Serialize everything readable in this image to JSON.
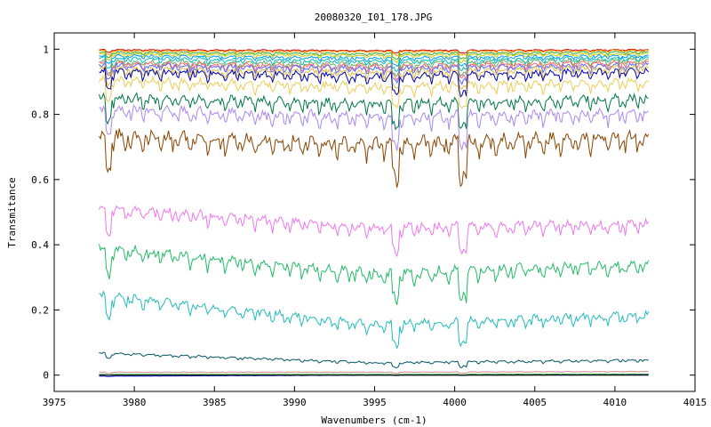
{
  "chart_data": {
    "type": "line",
    "title": "20080320_I01_178.JPG",
    "xlabel": "Wavenumbers (cm-1)",
    "ylabel": "Transmitance",
    "xlim": [
      3975,
      4015
    ],
    "ylim": [
      -0.05,
      1.05
    ],
    "x_ticks": [
      3975,
      3980,
      3985,
      3990,
      3995,
      4000,
      4005,
      4010,
      4015
    ],
    "y_ticks": [
      0,
      0.2,
      0.4,
      0.6,
      0.8,
      1
    ],
    "x_range": [
      3977.8,
      4012.1
    ],
    "grid": false,
    "legend": "none",
    "series": [
      {
        "color": "#cc0000",
        "levels": [
          1.0,
          0.998,
          1.0
        ],
        "depth": 0.004
      },
      {
        "color": "#ff9900",
        "levels": [
          0.998,
          0.996,
          0.999
        ],
        "depth": 0.006
      },
      {
        "color": "#33aa33",
        "levels": [
          0.994,
          0.99,
          0.995
        ],
        "depth": 0.008
      },
      {
        "color": "#cccc00",
        "levels": [
          0.99,
          0.985,
          0.99
        ],
        "depth": 0.01
      },
      {
        "color": "#0099ff",
        "levels": [
          0.985,
          0.978,
          0.985
        ],
        "depth": 0.012
      },
      {
        "color": "#00bbbb",
        "levels": [
          0.978,
          0.97,
          0.98
        ],
        "depth": 0.015
      },
      {
        "color": "#66aa66",
        "levels": [
          0.97,
          0.962,
          0.975
        ],
        "depth": 0.018
      },
      {
        "color": "#ff6666",
        "levels": [
          0.965,
          0.955,
          0.968
        ],
        "depth": 0.02
      },
      {
        "color": "#5566ff",
        "levels": [
          0.96,
          0.95,
          0.96
        ],
        "depth": 0.022
      },
      {
        "color": "#ddbb44",
        "levels": [
          0.95,
          0.94,
          0.955
        ],
        "depth": 0.025
      },
      {
        "color": "#0000aa",
        "levels": [
          0.945,
          0.93,
          0.945
        ],
        "depth": 0.03
      },
      {
        "color": "#eecc55",
        "levels": [
          0.92,
          0.9,
          0.915
        ],
        "depth": 0.035
      },
      {
        "color": "#007744",
        "levels": [
          0.87,
          0.85,
          0.865
        ],
        "depth": 0.04
      },
      {
        "color": "#aa88ee",
        "levels": [
          0.835,
          0.81,
          0.825
        ],
        "depth": 0.045
      },
      {
        "color": "#884400",
        "levels": [
          0.76,
          0.735,
          0.755
        ],
        "depth": 0.06
      },
      {
        "color": "#ee77ee",
        "levels": [
          0.53,
          0.47,
          0.48
        ],
        "depth": 0.04
      },
      {
        "color": "#22bb66",
        "levels": [
          0.41,
          0.33,
          0.36
        ],
        "depth": 0.045
      },
      {
        "color": "#22bbbb",
        "levels": [
          0.26,
          0.17,
          0.2
        ],
        "depth": 0.035
      },
      {
        "color": "#005566",
        "levels": [
          0.072,
          0.042,
          0.05
        ],
        "depth": 0.008
      },
      {
        "color": "#cc8888",
        "levels": [
          0.01,
          0.01,
          0.012
        ],
        "depth": 0.002
      },
      {
        "color": "#33aa33",
        "levels": [
          0.003,
          0.003,
          0.004
        ],
        "depth": 0.001
      },
      {
        "color": "#0000cc",
        "levels": [
          -0.003,
          0.0,
          0.001
        ],
        "depth": 0.0005
      },
      {
        "color": "#000000",
        "levels": [
          0.0,
          0.0,
          0.0
        ],
        "depth": 0.0
      }
    ]
  }
}
